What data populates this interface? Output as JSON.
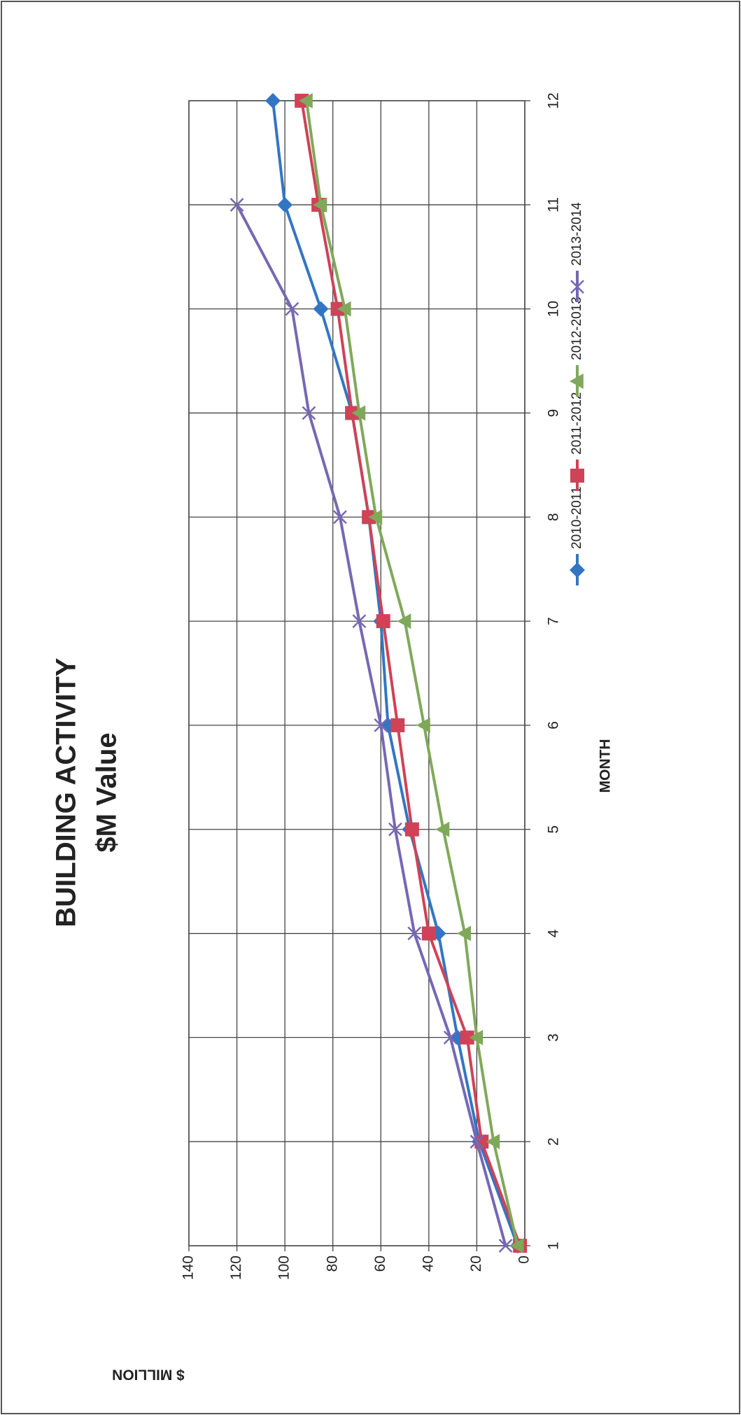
{
  "chart_data": {
    "type": "line",
    "title": "BUILDING ACTIVITY",
    "subtitle": "$M Value",
    "x_label": "MONTH",
    "y_label": "$ MILLION",
    "x": [
      1,
      2,
      3,
      4,
      5,
      6,
      7,
      8,
      9,
      10,
      11,
      12
    ],
    "xlim": [
      1,
      12
    ],
    "xticks": [
      1,
      2,
      3,
      4,
      5,
      6,
      7,
      8,
      9,
      10,
      11,
      12
    ],
    "ylim": [
      0,
      140
    ],
    "yticks": [
      0,
      20,
      40,
      60,
      80,
      100,
      120,
      140
    ],
    "grid": true,
    "legend": "bottom",
    "series": [
      {
        "name": "2010-2011",
        "color": "#3276c3",
        "marker": "diamond",
        "values": [
          3,
          19,
          28,
          36,
          48,
          57,
          60,
          65,
          72,
          85,
          100,
          105
        ]
      },
      {
        "name": "2011-2012",
        "color": "#cf4257",
        "marker": "square",
        "values": [
          2,
          18,
          24,
          40,
          47,
          53,
          59,
          65,
          72,
          78,
          86,
          93
        ]
      },
      {
        "name": "2012-2013",
        "color": "#80a85a",
        "marker": "triangle",
        "values": [
          3,
          13,
          20,
          25,
          34,
          42,
          50,
          62,
          69,
          75,
          85,
          91
        ]
      },
      {
        "name": "2013-2014",
        "color": "#7668b3",
        "marker": "x",
        "values": [
          8,
          20,
          31,
          46,
          54,
          60,
          69,
          77,
          90,
          97,
          120,
          null
        ]
      }
    ]
  }
}
